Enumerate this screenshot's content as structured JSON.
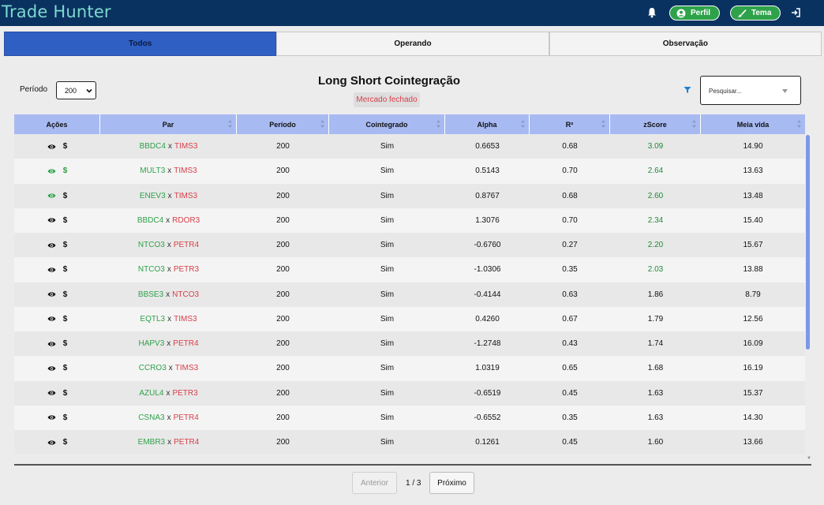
{
  "app": {
    "title": "Trade Hunter"
  },
  "header": {
    "profile_label": "Perfil",
    "theme_label": "Tema",
    "brand_color": "#0a3260",
    "button_color": "#2ea24a"
  },
  "tabs": [
    {
      "label": "Todos",
      "active": true
    },
    {
      "label": "Operando",
      "active": false
    },
    {
      "label": "Observação",
      "active": false
    }
  ],
  "controls": {
    "period_label": "Período",
    "period_value": "200",
    "page_title": "Long Short Cointegração",
    "status": "Mercado fechado",
    "search_placeholder": "Pesquisar..."
  },
  "table": {
    "columns": [
      "Ações",
      "Par",
      "Período",
      "Cointegrado",
      "Alpha",
      "R²",
      "zScore",
      "Meia vida"
    ],
    "rows": [
      {
        "eye_active": false,
        "dollar_active": false,
        "long": "BBDC4",
        "short": "TIMS3",
        "periodo": "200",
        "cointegrado": "Sim",
        "alpha": "0.6653",
        "r2": "0.68",
        "zscore": "3.09",
        "z_highlight": true,
        "meia_vida": "14.90"
      },
      {
        "eye_active": true,
        "dollar_active": true,
        "long": "MULT3",
        "short": "TIMS3",
        "periodo": "200",
        "cointegrado": "Sim",
        "alpha": "0.5143",
        "r2": "0.70",
        "zscore": "2.64",
        "z_highlight": true,
        "meia_vida": "13.63"
      },
      {
        "eye_active": true,
        "dollar_active": false,
        "long": "ENEV3",
        "short": "TIMS3",
        "periodo": "200",
        "cointegrado": "Sim",
        "alpha": "0.8767",
        "r2": "0.68",
        "zscore": "2.60",
        "z_highlight": true,
        "meia_vida": "13.48"
      },
      {
        "eye_active": false,
        "dollar_active": false,
        "long": "BBDC4",
        "short": "RDOR3",
        "periodo": "200",
        "cointegrado": "Sim",
        "alpha": "1.3076",
        "r2": "0.70",
        "zscore": "2.34",
        "z_highlight": true,
        "meia_vida": "15.40"
      },
      {
        "eye_active": false,
        "dollar_active": false,
        "long": "NTCO3",
        "short": "PETR4",
        "periodo": "200",
        "cointegrado": "Sim",
        "alpha": "-0.6760",
        "r2": "0.27",
        "zscore": "2.20",
        "z_highlight": true,
        "meia_vida": "15.67"
      },
      {
        "eye_active": false,
        "dollar_active": false,
        "long": "NTCO3",
        "short": "PETR3",
        "periodo": "200",
        "cointegrado": "Sim",
        "alpha": "-1.0306",
        "r2": "0.35",
        "zscore": "2.03",
        "z_highlight": true,
        "meia_vida": "13.88"
      },
      {
        "eye_active": false,
        "dollar_active": false,
        "long": "BBSE3",
        "short": "NTCO3",
        "periodo": "200",
        "cointegrado": "Sim",
        "alpha": "-0.4144",
        "r2": "0.63",
        "zscore": "1.86",
        "z_highlight": false,
        "meia_vida": "8.79"
      },
      {
        "eye_active": false,
        "dollar_active": false,
        "long": "EQTL3",
        "short": "TIMS3",
        "periodo": "200",
        "cointegrado": "Sim",
        "alpha": "0.4260",
        "r2": "0.67",
        "zscore": "1.79",
        "z_highlight": false,
        "meia_vida": "12.56"
      },
      {
        "eye_active": false,
        "dollar_active": false,
        "long": "HAPV3",
        "short": "PETR4",
        "periodo": "200",
        "cointegrado": "Sim",
        "alpha": "-1.2748",
        "r2": "0.43",
        "zscore": "1.74",
        "z_highlight": false,
        "meia_vida": "16.09"
      },
      {
        "eye_active": false,
        "dollar_active": false,
        "long": "CCRO3",
        "short": "TIMS3",
        "periodo": "200",
        "cointegrado": "Sim",
        "alpha": "1.0319",
        "r2": "0.65",
        "zscore": "1.68",
        "z_highlight": false,
        "meia_vida": "16.19"
      },
      {
        "eye_active": false,
        "dollar_active": false,
        "long": "AZUL4",
        "short": "PETR3",
        "periodo": "200",
        "cointegrado": "Sim",
        "alpha": "-0.6519",
        "r2": "0.45",
        "zscore": "1.63",
        "z_highlight": false,
        "meia_vida": "15.37"
      },
      {
        "eye_active": false,
        "dollar_active": false,
        "long": "CSNA3",
        "short": "PETR4",
        "periodo": "200",
        "cointegrado": "Sim",
        "alpha": "-0.6552",
        "r2": "0.35",
        "zscore": "1.63",
        "z_highlight": false,
        "meia_vida": "14.30"
      },
      {
        "eye_active": false,
        "dollar_active": false,
        "long": "EMBR3",
        "short": "PETR4",
        "periodo": "200",
        "cointegrado": "Sim",
        "alpha": "0.1261",
        "r2": "0.45",
        "zscore": "1.60",
        "z_highlight": false,
        "meia_vida": "13.66"
      }
    ]
  },
  "pagination": {
    "prev_label": "Anterior",
    "page_indicator": "1 / 3",
    "next_label": "Próximo"
  },
  "icons": [
    "bell-icon",
    "user-icon",
    "brush-icon",
    "exit-icon",
    "filter-icon",
    "eye-icon",
    "dollar-icon",
    "sort-icon",
    "chevron-down-icon"
  ]
}
